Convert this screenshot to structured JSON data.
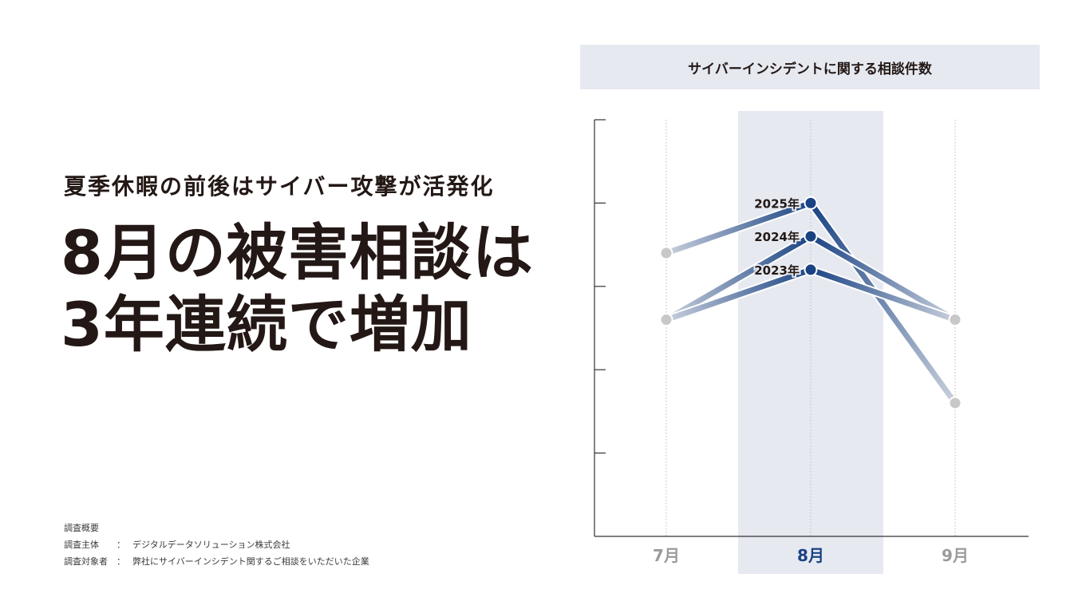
{
  "subtitle": "夏季休暇の前後はサイバー攻撃が活発化",
  "headline": [
    "8月の被害相談は",
    "3年連続で増加"
  ],
  "survey": {
    "heading": "調査概要",
    "rows": [
      {
        "key": "調査主体",
        "sep": "：",
        "value": "デジタルデータソリューション株式会社"
      },
      {
        "key": "調査対象者",
        "sep": "：",
        "value": "弊社にサイバーインシデント関するご相談をいただいた企業"
      }
    ]
  },
  "chart_data": {
    "type": "line",
    "title": "サイバーインシデントに関する相談件数",
    "categories": [
      "7月",
      "8月",
      "9月"
    ],
    "highlight_category": "8月",
    "ylim": [
      0,
      5
    ],
    "y_ticks": [
      1,
      2,
      3,
      4,
      5
    ],
    "grid": "vertical-dotted",
    "series": [
      {
        "name": "2025年",
        "values": [
          3.4,
          4.0,
          1.6
        ]
      },
      {
        "name": "2024年",
        "values": [
          2.6,
          3.6,
          2.6
        ]
      },
      {
        "name": "2023年",
        "values": [
          2.6,
          3.2,
          2.6
        ]
      }
    ],
    "colors": {
      "highlight_band": "#e6e9f0",
      "point_end": "#1a4384",
      "point_other": "#c8c8c8",
      "label_highlight": "#1a4384",
      "label_other": "#9b9b9b",
      "line_light": "#c9d0dc",
      "line_dark": "#1a4384"
    }
  }
}
